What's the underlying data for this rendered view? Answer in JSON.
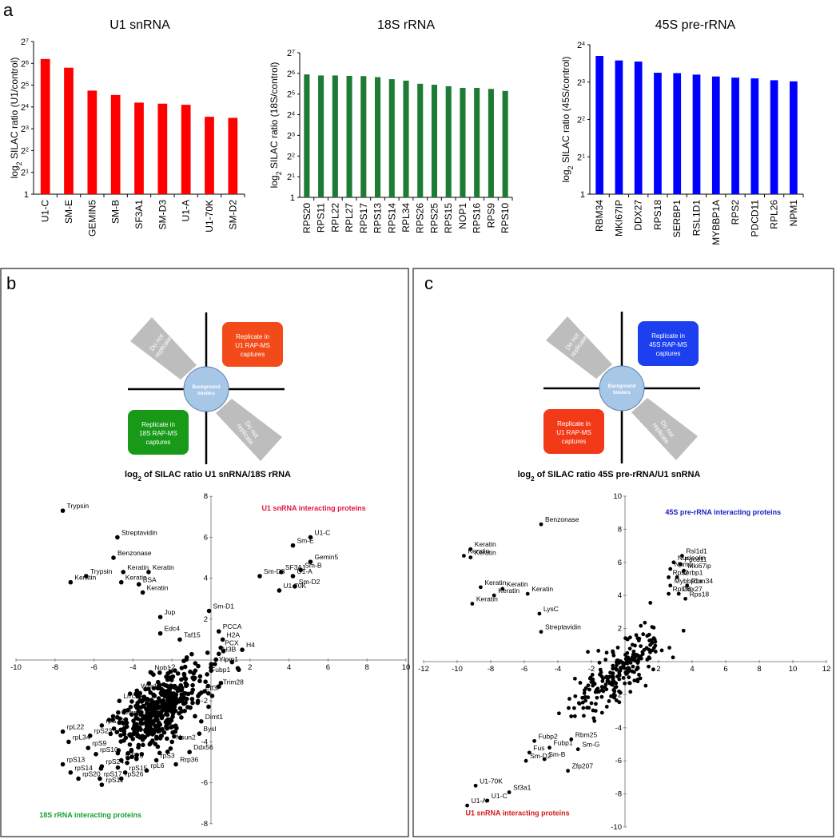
{
  "panel_labels": {
    "a": "a",
    "b": "b",
    "c": "c"
  },
  "chart_data": [
    {
      "type": "bar",
      "title": "U1 snRNA",
      "ylabel_pre": "log",
      "ylabel_sub": "2",
      "ylabel_post": " SILAC ratio (U1/control)",
      "color": "#ff0000",
      "ymax_exp": 7,
      "yticks": [
        {
          "label": "1",
          "exp": 0
        },
        {
          "label": "2",
          "sup": "1",
          "exp": 1
        },
        {
          "label": "2",
          "sup": "2",
          "exp": 2
        },
        {
          "label": "2",
          "sup": "3",
          "exp": 3
        },
        {
          "label": "2",
          "sup": "4",
          "exp": 4
        },
        {
          "label": "2",
          "sup": "5",
          "exp": 5
        },
        {
          "label": "2",
          "sup": "6",
          "exp": 6
        },
        {
          "label": "2",
          "sup": "7",
          "exp": 7
        }
      ],
      "categories": [
        "U1-C",
        "SM-E",
        "GEMIN5",
        "SM-B",
        "SF3A1",
        "SM-D3",
        "U1-A",
        "U1-70K",
        "SM-D2"
      ],
      "values": [
        6.2,
        5.8,
        4.75,
        4.55,
        4.2,
        4.15,
        4.1,
        3.55,
        3.5
      ]
    },
    {
      "type": "bar",
      "title": "18S rRNA",
      "ylabel_pre": "log",
      "ylabel_sub": "2",
      "ylabel_post": " SILAC ratio (18S/control)",
      "color": "#1e7b34",
      "ymax_exp": 7,
      "yticks": [
        {
          "label": "1",
          "exp": 0
        },
        {
          "label": "2",
          "sup": "1",
          "exp": 1
        },
        {
          "label": "2",
          "sup": "2",
          "exp": 2
        },
        {
          "label": "2",
          "sup": "3",
          "exp": 3
        },
        {
          "label": "2",
          "sup": "4",
          "exp": 4
        },
        {
          "label": "2",
          "sup": "5",
          "exp": 5
        },
        {
          "label": "2",
          "sup": "6",
          "exp": 6
        },
        {
          "label": "2",
          "sup": "7",
          "exp": 7
        }
      ],
      "categories": [
        "RPS20",
        "RPS11",
        "RPL22",
        "RPL27",
        "RPS17",
        "RPS13",
        "RPS14",
        "RPL34",
        "RPS26",
        "RPS25",
        "RPS15",
        "NOP1",
        "RPS16",
        "RPS9",
        "RPS10"
      ],
      "values": [
        5.95,
        5.9,
        5.9,
        5.88,
        5.87,
        5.82,
        5.72,
        5.65,
        5.5,
        5.45,
        5.38,
        5.3,
        5.3,
        5.25,
        5.15
      ]
    },
    {
      "type": "bar",
      "title": "45S pre-rRNA",
      "ylabel_pre": "log",
      "ylabel_sub": "2",
      "ylabel_post": " SILAC ratio (45S/control)",
      "color": "#0000ff",
      "ymax_exp": 4,
      "yticks": [
        {
          "label": "1",
          "exp": 0
        },
        {
          "label": "2",
          "sup": "1",
          "exp": 1
        },
        {
          "label": "2",
          "sup": "2",
          "exp": 2
        },
        {
          "label": "2",
          "sup": "3",
          "exp": 3
        },
        {
          "label": "2",
          "sup": "4",
          "exp": 4
        }
      ],
      "categories": [
        "RBM34",
        "MKI67IP",
        "DDX27",
        "RPS18",
        "SERBP1",
        "RSL1D1",
        "MYBBP1A",
        "RPS2",
        "PDCD11",
        "RPL26",
        "NPM1"
      ],
      "values": [
        3.7,
        3.58,
        3.55,
        3.25,
        3.24,
        3.2,
        3.15,
        3.12,
        3.1,
        3.05,
        3.02
      ]
    },
    {
      "type": "scatter",
      "title_pre": "log",
      "title_sub": "2",
      "title_post": " of SILAC ratio U1 snRNA/18S rRNA",
      "xticks": [
        -10,
        -8,
        -6,
        -4,
        -2,
        0,
        2,
        4,
        6,
        8,
        10
      ],
      "yticks": [
        -8,
        -6,
        -4,
        -2,
        0,
        2,
        4,
        6,
        8
      ],
      "xlim": [
        -10,
        10
      ],
      "ylim": [
        -8,
        8
      ],
      "quadrant_labels": [
        {
          "text": "U1 snRNA interacting proteins",
          "color": "#e2163c",
          "x": 2.6,
          "y": 7.3
        },
        {
          "text": "18S rRNA interacting proteins",
          "color": "#16a12e",
          "x": -8.8,
          "y": -7.7
        }
      ],
      "labeled_points": [
        {
          "label": "Trypsin",
          "x": -7.6,
          "y": 7.3
        },
        {
          "label": "Streptavidin",
          "x": -4.8,
          "y": 6.0
        },
        {
          "label": "Benzonase",
          "x": -5.0,
          "y": 5.0
        },
        {
          "label": "Keratin",
          "x": -4.5,
          "y": 4.3
        },
        {
          "label": "Keratin",
          "x": -3.2,
          "y": 4.3
        },
        {
          "label": "Trypsin",
          "x": -6.4,
          "y": 4.1
        },
        {
          "label": "Keratin",
          "x": -7.2,
          "y": 3.8
        },
        {
          "label": "Keratin",
          "x": -4.6,
          "y": 3.8
        },
        {
          "label": "BSA",
          "x": -3.7,
          "y": 3.7
        },
        {
          "label": "Keratin",
          "x": -3.5,
          "y": 3.3
        },
        {
          "label": "Jup",
          "x": -2.6,
          "y": 2.1
        },
        {
          "label": "Edc4",
          "x": -2.6,
          "y": 1.3
        },
        {
          "label": "Sm-D1",
          "x": -0.1,
          "y": 2.4
        },
        {
          "label": "Taf15",
          "x": -1.6,
          "y": 1.0
        },
        {
          "label": "PCCA",
          "x": 0.4,
          "y": 1.4
        },
        {
          "label": "H2A",
          "x": 0.6,
          "y": 1.0
        },
        {
          "label": "PCX",
          "x": 0.5,
          "y": 0.6
        },
        {
          "label": "H3B",
          "x": 0.4,
          "y": 0.3
        },
        {
          "label": "H4",
          "x": 1.6,
          "y": 0.5
        },
        {
          "label": "U1-C",
          "x": 5.1,
          "y": 6.0
        },
        {
          "label": "Sm-E",
          "x": 4.2,
          "y": 5.6
        },
        {
          "label": "Gemin5",
          "x": 5.1,
          "y": 4.8
        },
        {
          "label": "SF3A1",
          "x": 3.6,
          "y": 4.3
        },
        {
          "label": "Sm-B",
          "x": 4.6,
          "y": 4.4
        },
        {
          "label": "U1-A",
          "x": 4.2,
          "y": 4.1
        },
        {
          "label": "Sm-D3",
          "x": 2.5,
          "y": 4.1
        },
        {
          "label": "Sm-D2",
          "x": 4.3,
          "y": 3.6
        },
        {
          "label": "U1-70K",
          "x": 3.5,
          "y": 3.4
        },
        {
          "label": "Ylpm1",
          "x": 0.2,
          "y": -0.2
        },
        {
          "label": "Nob1",
          "x": -3.1,
          "y": -0.6
        },
        {
          "label": "Fubp1",
          "x": -0.2,
          "y": -0.7
        },
        {
          "label": "Trim28",
          "x": 0.4,
          "y": -1.3
        },
        {
          "label": "Wdr18",
          "x": -3.8,
          "y": -1.5
        },
        {
          "label": "Eif3i",
          "x": -0.5,
          "y": -1.6
        },
        {
          "label": "Lrrc59",
          "x": -4.7,
          "y": -2.0
        },
        {
          "label": "Cnbp",
          "x": -4.8,
          "y": -2.8
        },
        {
          "label": "rpS12",
          "x": -5.6,
          "y": -3.2
        },
        {
          "label": "rpL22",
          "x": -7.6,
          "y": -3.5
        },
        {
          "label": "Dimt1",
          "x": -0.5,
          "y": -3.0
        },
        {
          "label": "rpS23",
          "x": -6.2,
          "y": -3.7
        },
        {
          "label": "Bysl",
          "x": -0.6,
          "y": -3.6
        },
        {
          "label": "rpL34",
          "x": -7.3,
          "y": -4.0
        },
        {
          "label": "Nsun2",
          "x": -2.0,
          "y": -4.0
        },
        {
          "label": "rpS9",
          "x": -6.3,
          "y": -4.3
        },
        {
          "label": "Ddx56",
          "x": -1.1,
          "y": -4.5
        },
        {
          "label": "rpS10",
          "x": -5.9,
          "y": -4.6
        },
        {
          "label": "rpS16",
          "x": -4.6,
          "y": -4.9
        },
        {
          "label": "rpS3",
          "x": -2.8,
          "y": -4.9
        },
        {
          "label": "rpS13",
          "x": -7.6,
          "y": -5.1
        },
        {
          "label": "rpS24",
          "x": -5.6,
          "y": -5.2
        },
        {
          "label": "Rrp36",
          "x": -1.8,
          "y": -5.1
        },
        {
          "label": "rpL6",
          "x": -3.3,
          "y": -5.4
        },
        {
          "label": "rpS14",
          "x": -7.2,
          "y": -5.5
        },
        {
          "label": "rpS15",
          "x": -4.4,
          "y": -5.5
        },
        {
          "label": "rpS20",
          "x": -6.8,
          "y": -5.8
        },
        {
          "label": "rpS17",
          "x": -5.7,
          "y": -5.8
        },
        {
          "label": "rpS26",
          "x": -4.6,
          "y": -5.8
        },
        {
          "label": "rpS11",
          "x": -5.6,
          "y": -6.1
        }
      ],
      "cluster": {
        "center": [
          -2.6,
          -2.4
        ],
        "spread": [
          1.4,
          1.2
        ],
        "direction": [
          0.78,
          0.62
        ],
        "count": 420
      }
    },
    {
      "type": "scatter",
      "title_pre": "log",
      "title_sub": "2",
      "title_post": " of SILAC ratio 45S pre-rRNA/U1 snRNA",
      "xticks": [
        -12,
        -10,
        -8,
        -6,
        -4,
        -2,
        0,
        2,
        4,
        6,
        8,
        10,
        12
      ],
      "yticks": [
        -10,
        -8,
        -6,
        -4,
        -2,
        0,
        2,
        4,
        6,
        8,
        10
      ],
      "xlim": [
        -12,
        12
      ],
      "ylim": [
        -10,
        10
      ],
      "quadrant_labels": [
        {
          "text": "45S pre-rRNA interacting proteins",
          "color": "#1b21c4",
          "x": 2.4,
          "y": 8.9
        },
        {
          "text": "U1 snRNA interacting proteins",
          "color": "#d11b1b",
          "x": -9.5,
          "y": -9.3
        }
      ],
      "labeled_points": [
        {
          "label": "Benzonase",
          "x": -5.0,
          "y": 8.3
        },
        {
          "label": "Keratin",
          "x": -9.2,
          "y": 6.8
        },
        {
          "label": "Keratin",
          "x": -9.2,
          "y": 6.3
        },
        {
          "label": "Keratin",
          "x": -9.6,
          "y": 6.4
        },
        {
          "label": "Keratin",
          "x": -8.6,
          "y": 4.5
        },
        {
          "label": "Keratin",
          "x": -7.3,
          "y": 4.4
        },
        {
          "label": "Keratin",
          "x": -7.8,
          "y": 4.0
        },
        {
          "label": "Keratin",
          "x": -5.8,
          "y": 4.1
        },
        {
          "label": "Keratin",
          "x": -9.1,
          "y": 3.5
        },
        {
          "label": "LysC",
          "x": -5.1,
          "y": 2.9
        },
        {
          "label": "Streptavidin",
          "x": -5.0,
          "y": 1.8
        },
        {
          "label": "Nucleolin",
          "x": 2.9,
          "y": 6.0
        },
        {
          "label": "Rsl1d1",
          "x": 3.4,
          "y": 6.4
        },
        {
          "label": "Pdcd11",
          "x": 3.3,
          "y": 5.9
        },
        {
          "label": "Npm1",
          "x": 2.7,
          "y": 5.6
        },
        {
          "label": "Mki67ip",
          "x": 3.5,
          "y": 5.5
        },
        {
          "label": "Rps2",
          "x": 2.6,
          "y": 5.1
        },
        {
          "label": "Serbp1",
          "x": 3.1,
          "y": 5.1
        },
        {
          "label": "Mybbp1a",
          "x": 2.7,
          "y": 4.6
        },
        {
          "label": "Rbm34",
          "x": 3.7,
          "y": 4.6
        },
        {
          "label": "Rpl26",
          "x": 2.6,
          "y": 4.1
        },
        {
          "label": "Ddx27",
          "x": 3.2,
          "y": 4.1
        },
        {
          "label": "Rps18",
          "x": 3.6,
          "y": 3.8
        },
        {
          "label": "Fubp2",
          "x": -5.4,
          "y": -4.8
        },
        {
          "label": "Rbm25",
          "x": -3.2,
          "y": -4.7
        },
        {
          "label": "Fubp1",
          "x": -4.5,
          "y": -5.2
        },
        {
          "label": "Fus",
          "x": -5.7,
          "y": -5.5
        },
        {
          "label": "Sm-G",
          "x": -2.8,
          "y": -5.3
        },
        {
          "label": "Sm-D2",
          "x": -5.9,
          "y": -6.0
        },
        {
          "label": "Sm-B",
          "x": -4.8,
          "y": -5.9
        },
        {
          "label": "Zfp207",
          "x": -3.4,
          "y": -6.6
        },
        {
          "label": "U1-70K",
          "x": -8.9,
          "y": -7.5
        },
        {
          "label": "Sf3a1",
          "x": -6.9,
          "y": -7.9
        },
        {
          "label": "U1-C",
          "x": -8.2,
          "y": -8.4
        },
        {
          "label": "U1-A",
          "x": -9.4,
          "y": -8.7
        }
      ],
      "cluster": {
        "center": [
          -0.3,
          -0.6
        ],
        "spread": [
          1.9,
          1.2
        ],
        "direction": [
          0.72,
          0.69
        ],
        "count": 230
      }
    }
  ],
  "schematics": {
    "b": {
      "center_label": "Background binders",
      "box_top_right": [
        "Replicate in",
        "U1 RAP-MS",
        "captures"
      ],
      "box_top_right_color": "#f24a19",
      "box_bottom_left": [
        "Replicate in",
        "18S RAP-MS",
        "captures"
      ],
      "box_bottom_left_color": "#189a18",
      "tri_top_left": [
        "Do not",
        "replicate"
      ],
      "tri_bottom_right": [
        "Do not",
        "replicate"
      ]
    },
    "c": {
      "center_label": "Background binders",
      "box_top_right": [
        "Replicate in",
        "45S RAP-MS",
        "captures"
      ],
      "box_top_right_color": "#1c3ff0",
      "box_bottom_left": [
        "Replicate in",
        "U1 RAP-MS",
        "captures"
      ],
      "box_bottom_left_color": "#f23a18",
      "tri_top_left": [
        "Do not",
        "replicate"
      ],
      "tri_bottom_right": [
        "Do not",
        "replicate"
      ]
    }
  },
  "colors": {
    "axis": "#000000",
    "point": "#000000",
    "tri": "#bdbdbd",
    "circle_fill": "#a7c7e7",
    "circle_stroke": "#5a7fae"
  }
}
